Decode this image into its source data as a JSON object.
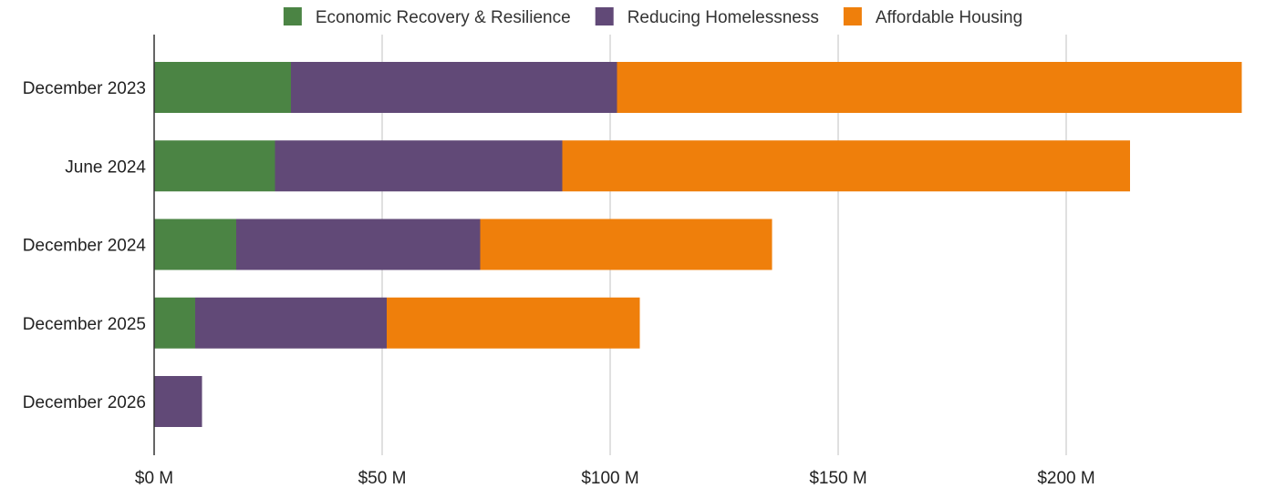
{
  "chart_data": {
    "type": "bar",
    "orientation": "horizontal",
    "stacked": true,
    "categories": [
      "December 2023",
      "June 2024",
      "December 2024",
      "December 2025",
      "December 2026"
    ],
    "series": [
      {
        "name": "Economic Recovery & Resilience",
        "color": "#4b8444",
        "values": [
          30,
          26.5,
          18,
          9,
          0
        ]
      },
      {
        "name": "Reducing Homelessness",
        "color": "#614977",
        "values": [
          71.5,
          63,
          53.5,
          42,
          10.5
        ]
      },
      {
        "name": "Affordable Housing",
        "color": "#ef7f0b",
        "values": [
          137,
          124.5,
          64,
          55.5,
          0
        ]
      }
    ],
    "xlim": [
      0,
      238
    ],
    "xticks": [
      0,
      50,
      100,
      150,
      200
    ],
    "xtick_labels": [
      "$0 M",
      "$50 M",
      "$100 M",
      "$150 M",
      "$200 M"
    ],
    "grid": true,
    "legend_position": "top"
  }
}
